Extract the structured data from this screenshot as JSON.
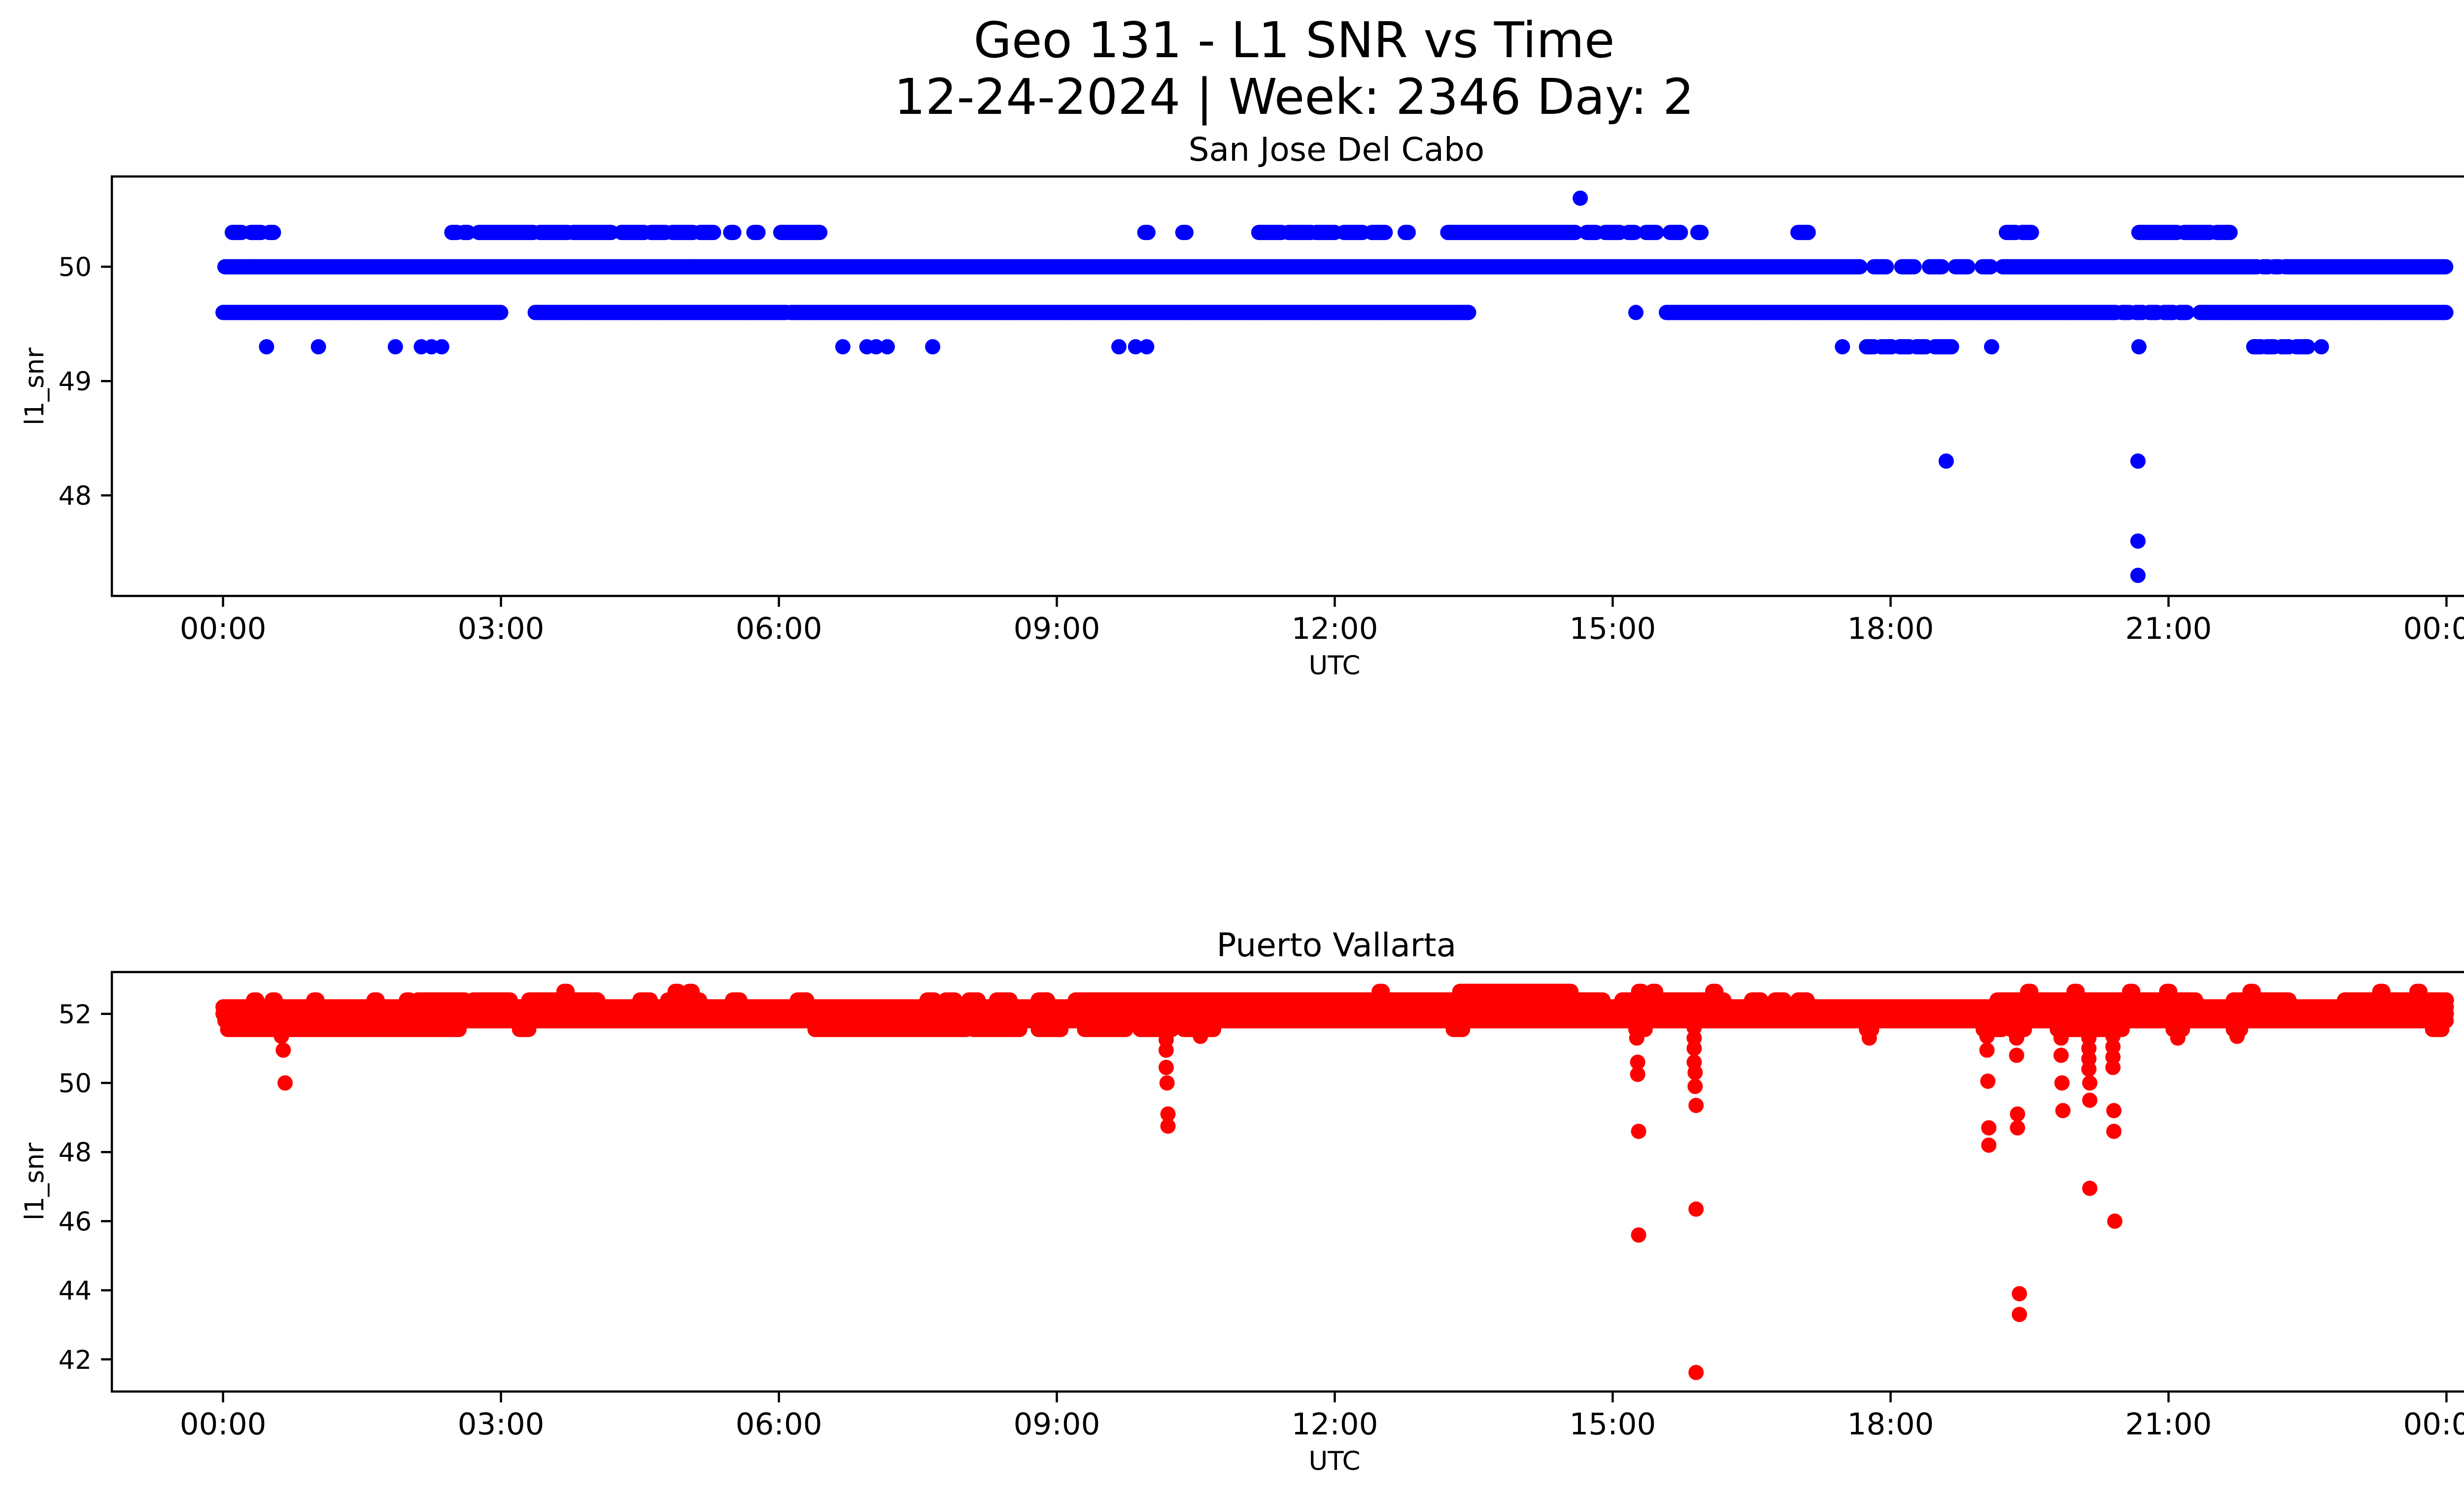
{
  "figure": {
    "title_line1": "Geo 131 - L1 SNR vs Time",
    "title_line2": "12-24-2024 | Week: 2346 Day: 2",
    "background_color": "#ffffff",
    "text_color": "#000000"
  },
  "chart_data": [
    {
      "type": "scatter",
      "station": "San Jose Del Cabo",
      "title": "San Jose Del Cabo",
      "xlabel": "UTC",
      "ylabel": "l1_snr",
      "marker_color": "#0000ff",
      "marker": "circle",
      "x_unit": "hours",
      "xlim": [
        -1.2,
        25.2
      ],
      "ylim": [
        47.12,
        50.79
      ],
      "x_ticks": [
        0,
        3,
        6,
        9,
        12,
        15,
        18,
        21,
        24
      ],
      "x_tick_labels": [
        "00:00",
        "03:00",
        "06:00",
        "09:00",
        "12:00",
        "15:00",
        "18:00",
        "21:00",
        "00:00"
      ],
      "y_ticks": [
        48,
        49,
        50
      ],
      "y_tick_labels": [
        "48",
        "49",
        "50"
      ],
      "sample_step_hours": 0.0111,
      "grid": false,
      "legend": null,
      "series_levels": [
        {
          "snr": 50.3,
          "intervals": [
            [
              0.1,
              0.2
            ],
            [
              0.3,
              0.42
            ],
            [
              0.5,
              0.55
            ],
            [
              2.47,
              2.53
            ],
            [
              2.6,
              2.65
            ],
            [
              2.76,
              3.35
            ],
            [
              3.42,
              3.72
            ],
            [
              3.78,
              4.2
            ],
            [
              4.3,
              4.55
            ],
            [
              4.62,
              4.78
            ],
            [
              4.85,
              5.08
            ],
            [
              5.15,
              5.3
            ],
            [
              5.48,
              5.52
            ],
            [
              5.73,
              5.78
            ],
            [
              6.02,
              6.45
            ],
            [
              9.95,
              9.99
            ],
            [
              10.36,
              10.4
            ],
            [
              11.18,
              11.43
            ],
            [
              11.5,
              11.75
            ],
            [
              11.8,
              12.0
            ],
            [
              12.1,
              12.3
            ],
            [
              12.4,
              12.55
            ],
            [
              12.76,
              12.8
            ],
            [
              13.22,
              14.6
            ],
            [
              14.72,
              14.82
            ],
            [
              14.92,
              15.08
            ],
            [
              15.17,
              15.24
            ],
            [
              15.36,
              15.48
            ],
            [
              15.62,
              15.74
            ],
            [
              15.92,
              15.96
            ],
            [
              17.0,
              17.12
            ],
            [
              19.25,
              19.35
            ],
            [
              19.42,
              19.52
            ],
            [
              20.68,
              21.1
            ],
            [
              21.17,
              21.45
            ],
            [
              21.52,
              21.67
            ]
          ]
        },
        {
          "snr": 50.0,
          "intervals": [
            [
              0.02,
              17.67
            ],
            [
              17.82,
              17.96
            ],
            [
              18.12,
              18.26
            ],
            [
              18.42,
              18.56
            ],
            [
              18.7,
              18.84
            ],
            [
              18.99,
              19.08
            ],
            [
              19.21,
              21.96
            ],
            [
              22.02,
              22.08
            ],
            [
              22.14,
              22.2
            ],
            [
              22.26,
              24.0
            ]
          ]
        },
        {
          "snr": 49.6,
          "intervals": [
            [
              0.0,
              3.0
            ],
            [
              3.37,
              6.08
            ],
            [
              6.13,
              13.45
            ],
            [
              15.58,
              20.44
            ],
            [
              20.5,
              20.58
            ],
            [
              20.65,
              20.72
            ],
            [
              20.79,
              20.88
            ],
            [
              20.95,
              21.05
            ],
            [
              21.12,
              21.2
            ],
            [
              21.34,
              24.0
            ]
          ]
        },
        {
          "snr": 49.3,
          "intervals": [
            [
              17.74,
              17.82
            ],
            [
              17.9,
              18.02
            ],
            [
              18.1,
              18.2
            ],
            [
              18.28,
              18.38
            ],
            [
              18.48,
              18.66
            ],
            [
              21.92,
              22.0
            ],
            [
              22.06,
              22.14
            ],
            [
              22.22,
              22.3
            ],
            [
              22.38,
              22.51
            ]
          ]
        }
      ],
      "points": [
        [
          0.47,
          49.3
        ],
        [
          1.03,
          49.3
        ],
        [
          1.86,
          49.3
        ],
        [
          2.14,
          49.3
        ],
        [
          2.25,
          49.3
        ],
        [
          2.36,
          49.3
        ],
        [
          6.69,
          49.3
        ],
        [
          6.95,
          49.3
        ],
        [
          7.05,
          49.3
        ],
        [
          7.17,
          49.3
        ],
        [
          7.66,
          49.3
        ],
        [
          9.67,
          49.3
        ],
        [
          9.85,
          49.3
        ],
        [
          9.97,
          49.3
        ],
        [
          15.25,
          49.6
        ],
        [
          17.48,
          49.3
        ],
        [
          19.09,
          49.3
        ],
        [
          20.68,
          49.3
        ],
        [
          22.65,
          49.3
        ],
        [
          14.65,
          50.6
        ],
        [
          18.6,
          48.3
        ],
        [
          20.67,
          48.3
        ],
        [
          20.67,
          47.6
        ],
        [
          20.67,
          47.3
        ]
      ]
    },
    {
      "type": "scatter",
      "station": "Puerto Vallarta",
      "title": "Puerto Vallarta",
      "xlabel": "UTC",
      "ylabel": "l1_snr",
      "marker_color": "#ff0000",
      "marker": "circle",
      "x_unit": "hours",
      "xlim": [
        -1.2,
        25.2
      ],
      "ylim": [
        41.07,
        53.21
      ],
      "x_ticks": [
        0,
        3,
        6,
        9,
        12,
        15,
        18,
        21,
        24
      ],
      "x_tick_labels": [
        "00:00",
        "03:00",
        "06:00",
        "09:00",
        "12:00",
        "15:00",
        "18:00",
        "21:00",
        "00:00"
      ],
      "y_ticks": [
        42,
        44,
        46,
        48,
        50,
        52
      ],
      "y_tick_labels": [
        "42",
        "44",
        "46",
        "48",
        "50",
        "52"
      ],
      "sample_step_hours": 0.0111,
      "grid": false,
      "legend": null,
      "series_levels": [
        {
          "snr": 52.2,
          "intervals": [
            [
              0.0,
              24.0
            ]
          ]
        },
        {
          "snr": 52.0,
          "intervals": [
            [
              0.0,
              24.0
            ]
          ]
        },
        {
          "snr": 51.8,
          "intervals": [
            [
              0.02,
              24.0
            ]
          ]
        },
        {
          "snr": 51.55,
          "intervals": [
            [
              0.05,
              2.55
            ],
            [
              3.2,
              3.3
            ],
            [
              6.39,
              8.03
            ],
            [
              8.1,
              8.6
            ],
            [
              8.8,
              9.05
            ],
            [
              9.3,
              9.75
            ],
            [
              9.9,
              10.25
            ],
            [
              10.37,
              10.7
            ],
            [
              13.28,
              13.38
            ],
            [
              15.25,
              15.35
            ],
            [
              17.74,
              17.8
            ],
            [
              19.0,
              19.2
            ],
            [
              19.3,
              19.45
            ],
            [
              19.8,
              20.5
            ],
            [
              21.05,
              21.15
            ],
            [
              21.7,
              21.78
            ],
            [
              23.85,
              23.95
            ]
          ]
        },
        {
          "snr": 52.4,
          "intervals": [
            [
              0.33,
              0.37
            ],
            [
              0.53,
              0.57
            ],
            [
              0.98,
              1.02
            ],
            [
              1.63,
              1.67
            ],
            [
              1.98,
              2.02
            ],
            [
              2.1,
              2.62
            ],
            [
              2.7,
              3.1
            ],
            [
              3.3,
              4.05
            ],
            [
              4.5,
              4.62
            ],
            [
              4.8,
              5.15
            ],
            [
              5.5,
              5.58
            ],
            [
              6.2,
              6.3
            ],
            [
              7.6,
              7.68
            ],
            [
              7.8,
              7.9
            ],
            [
              8.05,
              8.15
            ],
            [
              8.35,
              8.5
            ],
            [
              8.8,
              8.9
            ],
            [
              9.2,
              14.9
            ],
            [
              15.1,
              16.2
            ],
            [
              16.5,
              16.6
            ],
            [
              16.75,
              16.85
            ],
            [
              17.0,
              17.1
            ],
            [
              19.15,
              21.3
            ],
            [
              21.7,
              22.3
            ],
            [
              22.9,
              24.0
            ]
          ]
        },
        {
          "snr": 52.65,
          "intervals": [
            [
              3.68,
              3.72
            ],
            [
              4.88,
              4.92
            ],
            [
              5.03,
              5.07
            ],
            [
              12.48,
              12.52
            ],
            [
              13.35,
              14.55
            ],
            [
              15.28,
              15.32
            ],
            [
              15.43,
              15.47
            ],
            [
              16.08,
              16.12
            ],
            [
              19.48,
              19.52
            ],
            [
              19.98,
              20.02
            ],
            [
              20.58,
              20.62
            ],
            [
              20.98,
              21.02
            ],
            [
              21.88,
              21.92
            ],
            [
              23.28,
              23.32
            ],
            [
              23.68,
              23.72
            ]
          ]
        }
      ],
      "points": [
        [
          0.63,
          51.35
        ],
        [
          0.65,
          50.95
        ],
        [
          0.67,
          50.0
        ],
        [
          10.18,
          51.25
        ],
        [
          10.18,
          50.95
        ],
        [
          10.18,
          50.45
        ],
        [
          10.19,
          50.0
        ],
        [
          10.2,
          49.1
        ],
        [
          10.2,
          48.75
        ],
        [
          10.55,
          51.35
        ],
        [
          15.26,
          51.6
        ],
        [
          15.26,
          51.3
        ],
        [
          15.27,
          50.6
        ],
        [
          15.27,
          50.25
        ],
        [
          15.28,
          48.6
        ],
        [
          15.28,
          45.6
        ],
        [
          15.88,
          51.6
        ],
        [
          15.88,
          51.3
        ],
        [
          15.88,
          51.0
        ],
        [
          15.88,
          50.6
        ],
        [
          15.89,
          50.3
        ],
        [
          15.89,
          49.9
        ],
        [
          15.9,
          49.35
        ],
        [
          15.9,
          46.35
        ],
        [
          15.9,
          41.62
        ],
        [
          17.77,
          51.3
        ],
        [
          19.04,
          51.35
        ],
        [
          19.04,
          50.95
        ],
        [
          19.05,
          50.05
        ],
        [
          19.06,
          48.7
        ],
        [
          19.06,
          48.2
        ],
        [
          19.36,
          51.3
        ],
        [
          19.36,
          50.8
        ],
        [
          19.37,
          49.1
        ],
        [
          19.37,
          48.7
        ],
        [
          19.39,
          43.9
        ],
        [
          19.39,
          43.3
        ],
        [
          19.84,
          51.3
        ],
        [
          19.84,
          50.8
        ],
        [
          19.85,
          50.0
        ],
        [
          19.86,
          49.2
        ],
        [
          20.14,
          51.6
        ],
        [
          20.14,
          51.3
        ],
        [
          20.14,
          51.0
        ],
        [
          20.14,
          50.7
        ],
        [
          20.14,
          50.4
        ],
        [
          20.15,
          50.0
        ],
        [
          20.15,
          49.5
        ],
        [
          20.15,
          46.95
        ],
        [
          20.4,
          51.35
        ],
        [
          20.4,
          51.05
        ],
        [
          20.4,
          50.75
        ],
        [
          20.4,
          50.45
        ],
        [
          20.41,
          49.2
        ],
        [
          20.41,
          48.6
        ],
        [
          20.42,
          46.0
        ],
        [
          21.1,
          51.3
        ],
        [
          21.74,
          51.35
        ]
      ]
    }
  ]
}
